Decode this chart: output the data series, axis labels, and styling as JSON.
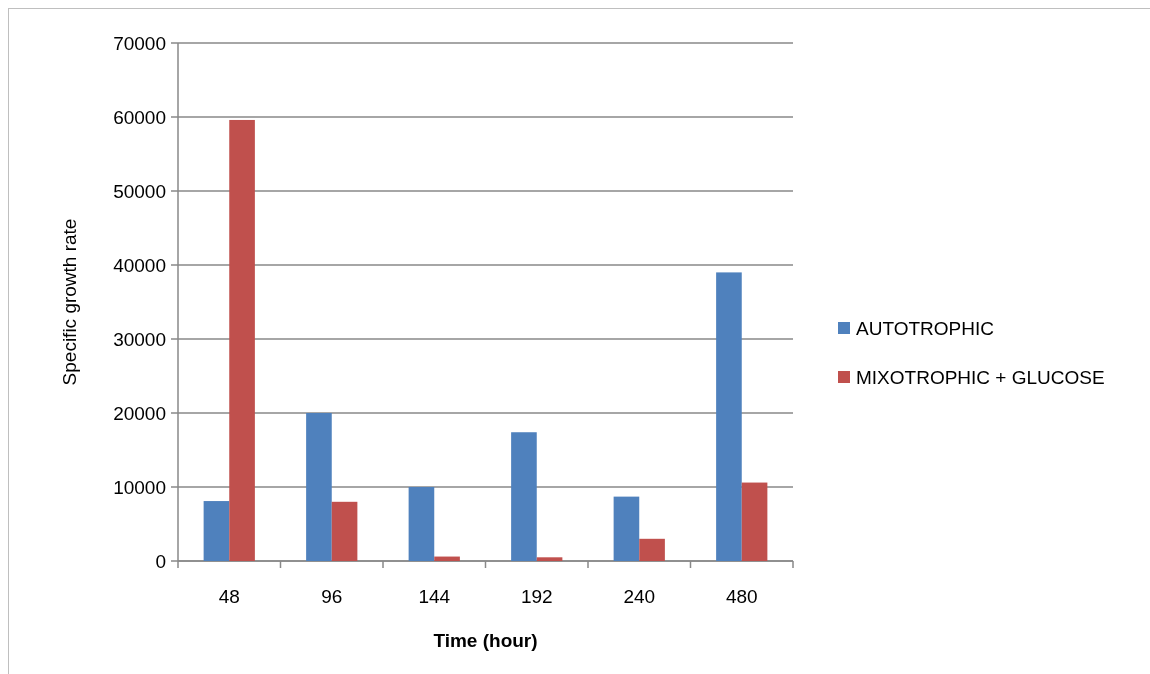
{
  "chart_data": {
    "type": "bar",
    "xlabel": "Time (hour)",
    "ylabel": "Specific growth rate",
    "categories": [
      "48",
      "96",
      "144",
      "192",
      "240",
      "480"
    ],
    "series": [
      {
        "name": "AUTOTROPHIC",
        "color": "#4f81bd",
        "values": [
          8100,
          20000,
          10000,
          17400,
          8700,
          39000
        ]
      },
      {
        "name": "MIXOTROPHIC + GLUCOSE",
        "color": "#c0504d",
        "values": [
          59600,
          8000,
          600,
          500,
          3000,
          10600
        ]
      }
    ],
    "ylim": [
      0,
      70000
    ],
    "yticks": [
      0,
      10000,
      20000,
      30000,
      40000,
      50000,
      60000,
      70000
    ],
    "grid": "y",
    "legend": "right"
  }
}
